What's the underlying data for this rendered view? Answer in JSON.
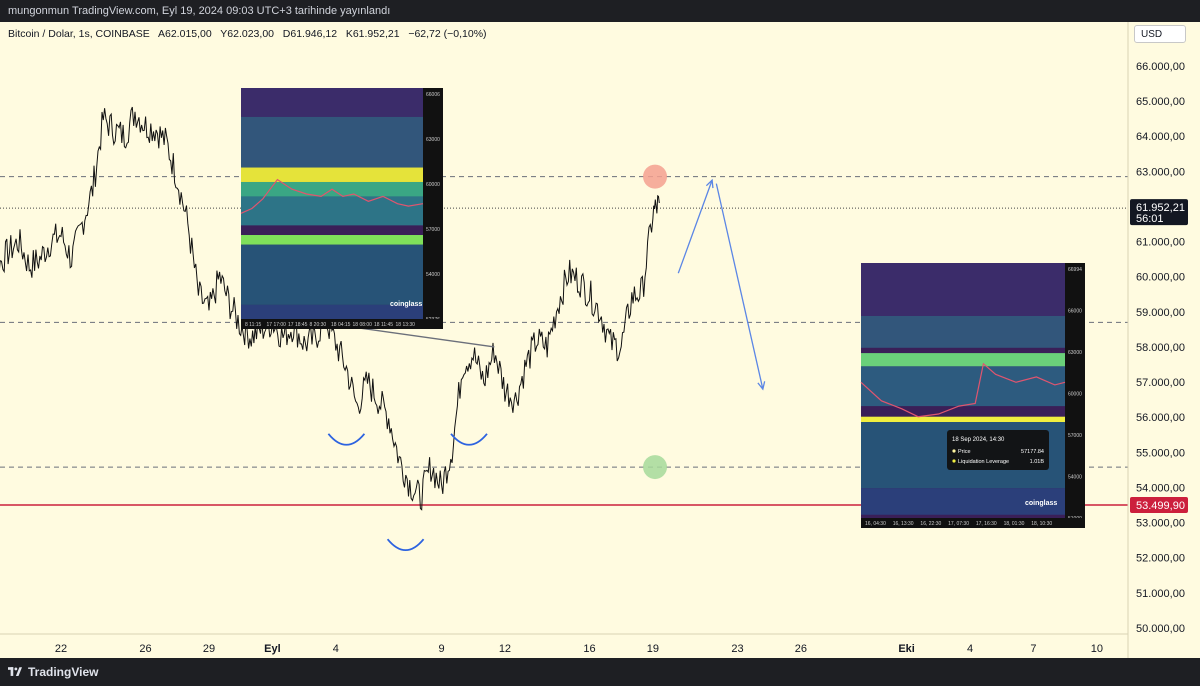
{
  "header": {
    "published": "mungonmun TradingView.com, Eyl 19, 2024 09:03 UTC+3 tarihinde yayınlandı"
  },
  "symbol": {
    "name": "Bitcoin / Dolar, 1s, COINBASE",
    "open": "A62.015,00",
    "high": "Y62.023,00",
    "low": "D61.946,12",
    "close": "K61.952,21",
    "change": "−62,72 (−0,10%)"
  },
  "currency": "USD",
  "footer": {
    "brand": "TradingView"
  },
  "colors": {
    "background": "#fffbe0",
    "price_line": "#cc1f3c",
    "arrow": "#5b86e5",
    "red_circle": "#f4a08f",
    "green_circle": "#a6d99a",
    "price_badge": "#131722"
  },
  "price_badges": {
    "last_price": "61.952,21",
    "countdown": "56:01",
    "red_line_price": "53.499,90"
  },
  "chart_data": {
    "type": "line",
    "y_axis": {
      "ticks": [
        "66.000,00",
        "65.000,00",
        "64.000,00",
        "63.000,00",
        "62.000,00",
        "61.000,00",
        "60.000,00",
        "59.000,00",
        "58.000,00",
        "57.000,00",
        "56.000,00",
        "55.000,00",
        "54.000,00",
        "53.000,00",
        "52.000,00",
        "51.000,00",
        "50.000,00"
      ],
      "tick_values": [
        66000,
        65000,
        64000,
        63000,
        62000,
        61000,
        60000,
        59000,
        58000,
        57000,
        56000,
        55000,
        54000,
        53000,
        52000,
        51000,
        50000
      ],
      "range": [
        49600,
        66800
      ]
    },
    "x_axis": {
      "ticks": [
        "22",
        "26",
        "29",
        "Eyl",
        "4",
        "9",
        "12",
        "16",
        "19",
        "23",
        "26",
        "Eki",
        "4",
        "7",
        "10"
      ],
      "tick_days": [
        22,
        26,
        29,
        32,
        35,
        40,
        43,
        47,
        50,
        54,
        57,
        62,
        65,
        68,
        71
      ]
    },
    "series": [
      {
        "x": [
          18.0,
          18.5,
          19.0,
          19.5,
          20.0,
          20.5,
          21.0,
          21.5,
          22.0,
          22.5,
          23.0,
          23.5,
          24.0,
          24.5,
          25.0,
          25.5,
          26.0,
          26.5,
          27.0,
          27.5,
          28.0,
          28.5,
          29.0,
          29.5,
          30.0,
          30.5,
          31.0,
          31.5,
          32.0,
          32.5,
          33.0,
          33.5,
          34.0,
          34.5,
          35.0,
          35.5,
          36.0,
          36.5,
          37.0,
          37.5,
          38.0,
          38.5,
          39.0,
          39.5,
          40.0,
          40.5,
          41.0,
          41.5,
          42.0,
          42.5,
          43.0,
          43.5,
          44.0,
          44.5,
          45.0,
          45.5,
          46.0,
          46.5,
          47.0,
          47.5,
          48.0,
          48.5,
          49.0,
          49.5,
          50.0,
          50.3
        ],
        "y": [
          58200,
          59200,
          60300,
          60700,
          61000,
          60300,
          60500,
          61000,
          61200,
          60500,
          61500,
          62500,
          64500,
          64200,
          64000,
          64700,
          64300,
          64200,
          63800,
          62800,
          61500,
          59500,
          59000,
          60000,
          59200,
          58600,
          58300,
          58500,
          58700,
          58300,
          58600,
          58100,
          58200,
          58800,
          58100,
          57400,
          56300,
          57000,
          56500,
          56000,
          54800,
          54100,
          53700,
          54600,
          54000,
          55100,
          57500,
          57800,
          57000,
          57900,
          56800,
          56500,
          57500,
          58200,
          58000,
          59200,
          60100,
          59900,
          59500,
          59000,
          58100,
          58000,
          59400,
          59600,
          61800,
          62100
        ]
      }
    ],
    "annotations": {
      "dashed_levels": [
        62850,
        58700,
        54580
      ],
      "dotted_level": 61952,
      "solid_level": 53500,
      "neckline": {
        "from": [
          36.0,
          58550
        ],
        "to": [
          42.5,
          58000
        ]
      },
      "smile_arcs": [
        {
          "x": 35.5,
          "y": 55300
        },
        {
          "x": 38.3,
          "y": 52300
        },
        {
          "x": 41.3,
          "y": 55300
        }
      ],
      "projection_arrows": [
        {
          "from": [
            51.2,
            60100
          ],
          "to": [
            52.8,
            62750
          ]
        },
        {
          "from": [
            53.0,
            62650
          ],
          "to": [
            55.2,
            56800
          ]
        }
      ],
      "circles": [
        {
          "x": 50.1,
          "y": 62850,
          "kind": "red"
        },
        {
          "x": 50.1,
          "y": 54580,
          "kind": "green"
        }
      ]
    }
  },
  "heatmap_left": {
    "watermark": "coinglass",
    "y_labels": [
      "66006",
      "63000",
      "60000",
      "57000",
      "54000",
      "52376"
    ],
    "x_labels": [
      "8 11:15",
      "17 17:00",
      "17 18:45",
      "8 20:30",
      "18 04:15",
      "18 08:00",
      "18 11:45",
      "18 13:30"
    ]
  },
  "heatmap_right": {
    "watermark": "coinglass",
    "y_labels": [
      "66994",
      "66000",
      "63000",
      "60000",
      "57000",
      "54000",
      "51000"
    ],
    "x_labels": [
      "16, 04:30",
      "16, 13:30",
      "16, 22:30",
      "17, 07:30",
      "17, 16:30",
      "18, 01:30",
      "18, 10:30"
    ],
    "tooltip": {
      "title": "18 Sep 2024, 14:30",
      "price_label": "Price",
      "price_value": "57177.84",
      "lev_label": "Liquidation Leverage",
      "lev_value": "1.01B"
    }
  }
}
